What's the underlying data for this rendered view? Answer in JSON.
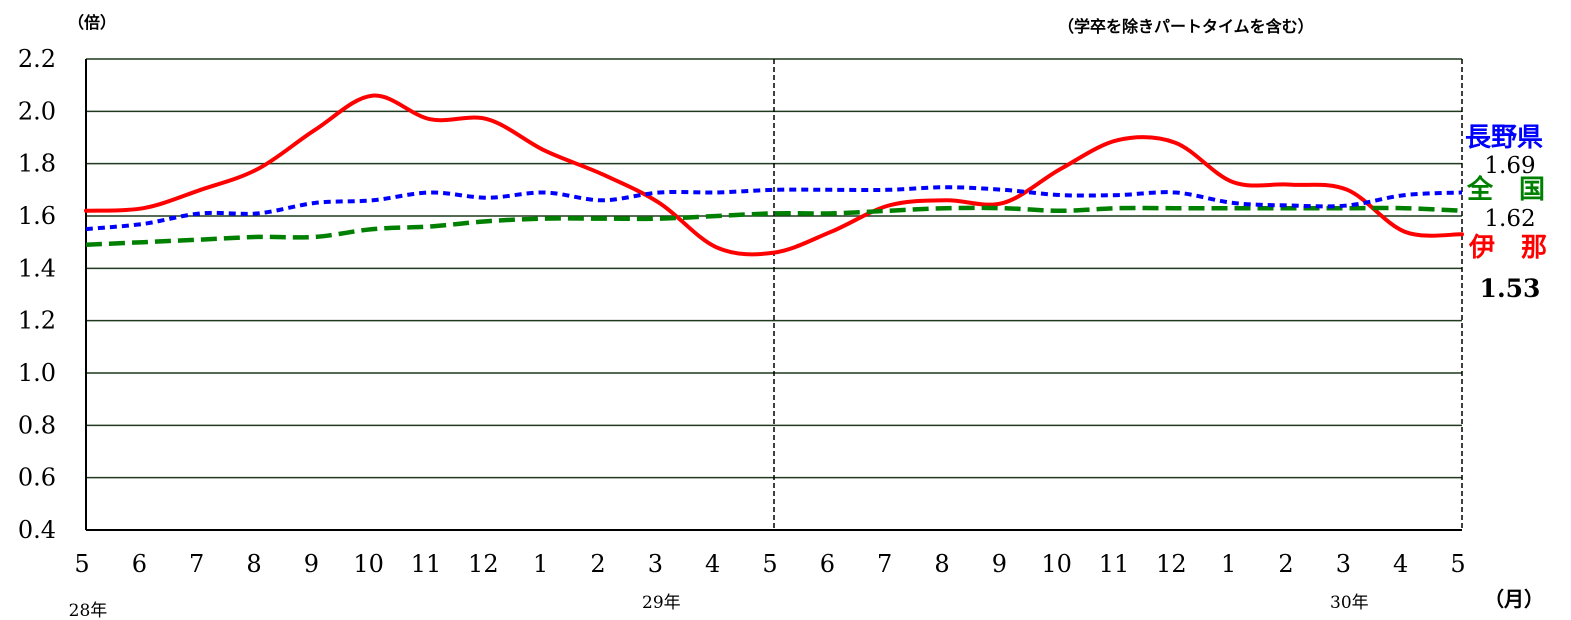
{
  "chart_data": {
    "type": "line",
    "ylabel": "（倍）",
    "note": "（学卒を除きパートタイムを含む）",
    "xlabel": "（月）",
    "ylim": [
      0.4,
      2.2
    ],
    "yticks": [
      "2.2",
      "2.0",
      "1.8",
      "1.6",
      "1.4",
      "1.2",
      "1.0",
      "0.8",
      "0.6",
      "0.4"
    ],
    "categories": [
      "5",
      "6",
      "7",
      "8",
      "9",
      "10",
      "11",
      "12",
      "1",
      "2",
      "3",
      "4",
      "5",
      "6",
      "7",
      "8",
      "9",
      "10",
      "11",
      "12",
      "1",
      "2",
      "3",
      "4",
      "5"
    ],
    "year_labels": [
      {
        "label": "28年",
        "index": 0
      },
      {
        "label": "29年",
        "index": 10
      },
      {
        "label": "30年",
        "index": 22
      }
    ],
    "grid": true,
    "divider_index": 12,
    "series": [
      {
        "name": "長野県",
        "end_label": "1.69",
        "color": "#0000ff",
        "style": "dotted",
        "values": [
          1.55,
          1.57,
          1.61,
          1.61,
          1.65,
          1.66,
          1.69,
          1.67,
          1.69,
          1.66,
          1.69,
          1.69,
          1.7,
          1.7,
          1.7,
          1.71,
          1.7,
          1.68,
          1.68,
          1.69,
          1.65,
          1.64,
          1.64,
          1.68,
          1.69
        ]
      },
      {
        "name": "全　国",
        "end_label": "1.62",
        "color": "#008000",
        "style": "dashed",
        "values": [
          1.49,
          1.5,
          1.51,
          1.52,
          1.52,
          1.55,
          1.56,
          1.58,
          1.59,
          1.59,
          1.59,
          1.6,
          1.61,
          1.61,
          1.62,
          1.63,
          1.63,
          1.62,
          1.63,
          1.63,
          1.63,
          1.63,
          1.63,
          1.63,
          1.62
        ]
      },
      {
        "name": "伊　那",
        "end_label": "1.53",
        "color": "#ff0000",
        "style": "solid",
        "values": [
          1.62,
          1.63,
          1.7,
          1.78,
          1.93,
          2.06,
          1.97,
          1.97,
          1.85,
          1.76,
          1.65,
          1.48,
          1.46,
          1.54,
          1.64,
          1.66,
          1.65,
          1.78,
          1.89,
          1.88,
          1.73,
          1.72,
          1.7,
          1.54,
          1.53
        ]
      }
    ]
  }
}
